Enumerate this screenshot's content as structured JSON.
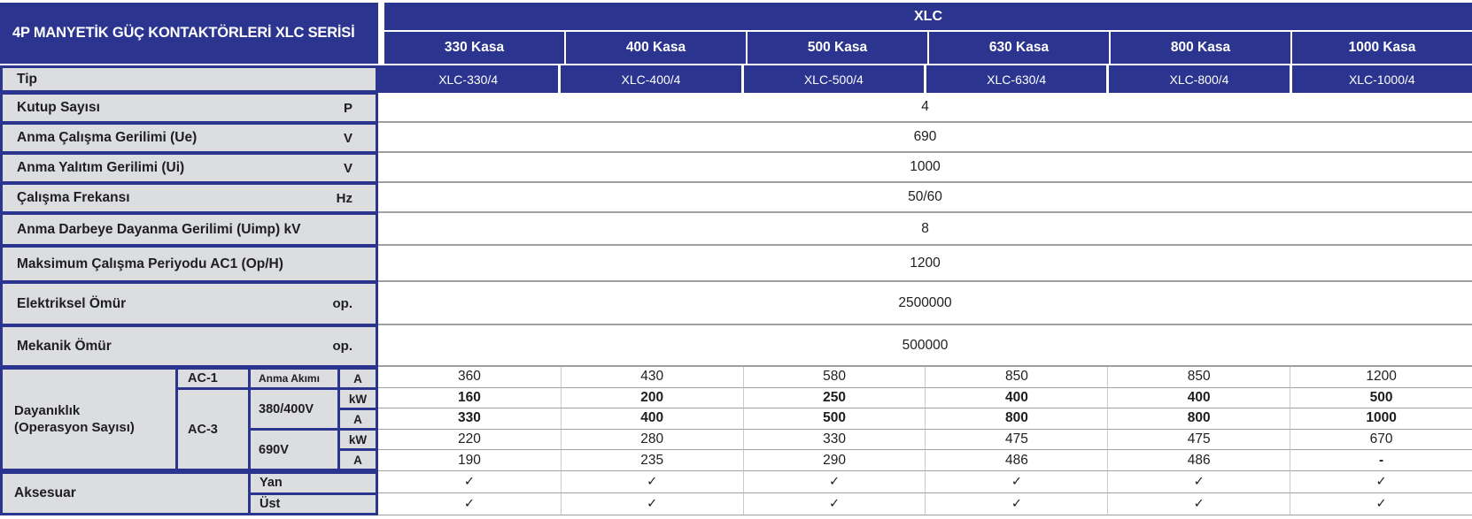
{
  "table": {
    "title": "4P MANYETİK GÜÇ KONTAKTÖRLERİ XLC SERİSİ",
    "series_header": "XLC",
    "frame_columns": [
      "330 Kasa",
      "400 Kasa",
      "500 Kasa",
      "630 Kasa",
      "800 Kasa",
      "1000 Kasa"
    ],
    "type_row": {
      "label": "Tip",
      "values": [
        "XLC-330/4",
        "XLC-400/4",
        "XLC-500/4",
        "XLC-630/4",
        "XLC-800/4",
        "XLC-1000/4"
      ]
    },
    "spec_rows": [
      {
        "label": "Kutup Sayısı",
        "unit": "P",
        "value": "4"
      },
      {
        "label": "Anma Çalışma Gerilimi (Ue)",
        "unit": "V",
        "value": "690"
      },
      {
        "label": "Anma Yalıtım Gerilimi (Ui)",
        "unit": "V",
        "value": "1000"
      },
      {
        "label": "Çalışma Frekansı",
        "unit": "Hz",
        "value": "50/60"
      },
      {
        "label": "Anma Darbeye Dayanma Gerilimi (Uimp) kV",
        "unit": "",
        "value": "8"
      },
      {
        "label": "Maksimum Çalışma Periyodu AC1 (Op/H)",
        "unit": "",
        "value": "1200"
      },
      {
        "label": "Elektriksel Ömür",
        "unit": "op.",
        "value": "2500000"
      },
      {
        "label": "Mekanik Ömür",
        "unit": "op.",
        "value": "500000"
      }
    ],
    "durability": {
      "label_line1": "Dayanıklık",
      "label_line2": "(Operasyon Sayısı)",
      "groups": {
        "ac1": "AC-1",
        "ac3": "AC-3",
        "anma_akimi": "Anma Akımı",
        "v380_400": "380/400V",
        "v690": "690V"
      },
      "rows": [
        {
          "unit": "A",
          "values": [
            "360",
            "430",
            "580",
            "850",
            "850",
            "1200"
          ]
        },
        {
          "unit": "kW",
          "values": [
            "160",
            "200",
            "250",
            "400",
            "400",
            "500"
          ]
        },
        {
          "unit": "A",
          "values": [
            "330",
            "400",
            "500",
            "800",
            "800",
            "1000"
          ]
        },
        {
          "unit": "kW",
          "values": [
            "220",
            "280",
            "330",
            "475",
            "475",
            "670"
          ]
        },
        {
          "unit": "A",
          "values": [
            "190",
            "235",
            "290",
            "486",
            "486",
            "-"
          ]
        }
      ]
    },
    "accessories": {
      "label": "Aksesuar",
      "rows": [
        {
          "label": "Yan",
          "values": [
            "✓",
            "✓",
            "✓",
            "✓",
            "✓",
            "✓"
          ]
        },
        {
          "label": "Üst",
          "values": [
            "✓",
            "✓",
            "✓",
            "✓",
            "✓",
            "✓"
          ]
        }
      ]
    }
  },
  "colors": {
    "navy": "#2b3590",
    "label_bg": "#dcdddf",
    "row_line": "#9da0a3",
    "col_line": "#c6c8ca",
    "text": "#1e1e20"
  }
}
